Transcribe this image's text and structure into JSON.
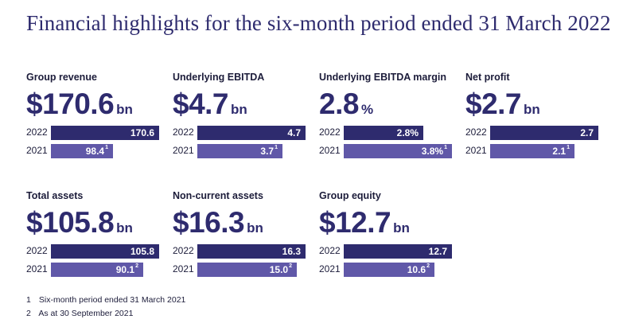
{
  "title": "Financial highlights for the six-month period ended 31 March 2022",
  "colors": {
    "bar_2022": "#2e2b6e",
    "bar_2021": "#6058a8",
    "title": "#2e2b6e"
  },
  "metrics": [
    {
      "label": "Group revenue",
      "value": "$170.6",
      "unit": "bn",
      "rows": [
        {
          "year": "2022",
          "bar_label": "170.6",
          "note": "",
          "fill": 1.0
        },
        {
          "year": "2021",
          "bar_label": "98.4",
          "note": "1",
          "fill": 0.577
        }
      ]
    },
    {
      "label": "Underlying EBITDA",
      "value": "$4.7",
      "unit": "bn",
      "rows": [
        {
          "year": "2022",
          "bar_label": "4.7",
          "note": "",
          "fill": 1.0
        },
        {
          "year": "2021",
          "bar_label": "3.7",
          "note": "1",
          "fill": 0.787
        }
      ]
    },
    {
      "label": "Underlying EBITDA margin",
      "value": "2.8",
      "unit": "%",
      "rows": [
        {
          "year": "2022",
          "bar_label": "2.8%",
          "note": "",
          "fill": 0.737
        },
        {
          "year": "2021",
          "bar_label": "3.8%",
          "note": "1",
          "fill": 1.0
        }
      ]
    },
    {
      "label": "Net profit",
      "value": "$2.7",
      "unit": "bn",
      "rows": [
        {
          "year": "2022",
          "bar_label": "2.7",
          "note": "",
          "fill": 1.0
        },
        {
          "year": "2021",
          "bar_label": "2.1",
          "note": "1",
          "fill": 0.778
        }
      ]
    },
    {
      "label": "Total assets",
      "value": "$105.8",
      "unit": "bn",
      "rows": [
        {
          "year": "2022",
          "bar_label": "105.8",
          "note": "",
          "fill": 1.0
        },
        {
          "year": "2021",
          "bar_label": "90.1",
          "note": "2",
          "fill": 0.852
        }
      ]
    },
    {
      "label": "Non-current assets",
      "value": "$16.3",
      "unit": "bn",
      "rows": [
        {
          "year": "2022",
          "bar_label": "16.3",
          "note": "",
          "fill": 1.0
        },
        {
          "year": "2021",
          "bar_label": "15.0",
          "note": "2",
          "fill": 0.92
        }
      ]
    },
    {
      "label": "Group equity",
      "value": "$12.7",
      "unit": "bn",
      "rows": [
        {
          "year": "2022",
          "bar_label": "12.7",
          "note": "",
          "fill": 1.0
        },
        {
          "year": "2021",
          "bar_label": "10.6",
          "note": "2",
          "fill": 0.835
        }
      ]
    }
  ],
  "footnotes": [
    {
      "num": "1",
      "text": "Six-month period ended 31 March 2021"
    },
    {
      "num": "2",
      "text": "As at 30 September 2021"
    }
  ]
}
